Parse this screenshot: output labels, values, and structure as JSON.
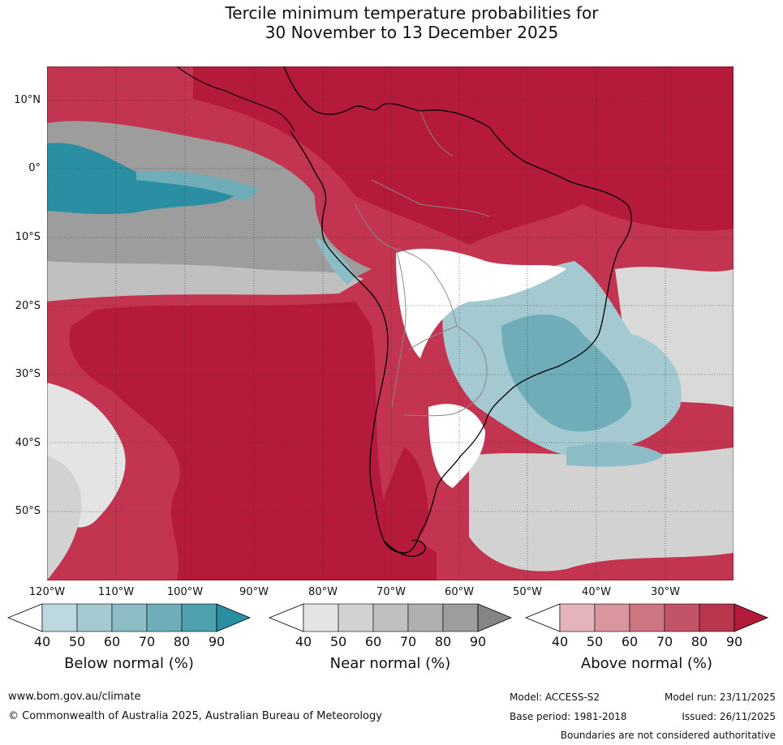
{
  "title": {
    "line1": "Tercile minimum temperature probabilities for",
    "line2": "30 November to 13 December 2025"
  },
  "map": {
    "lat_labels": [
      "10°N",
      "0°",
      "10°S",
      "20°S",
      "30°S",
      "40°S",
      "50°S"
    ],
    "lon_labels": [
      "120°W",
      "110°W",
      "100°W",
      "90°W",
      "80°W",
      "70°W",
      "60°W",
      "50°W",
      "40°W",
      "30°W"
    ],
    "colors": {
      "below_full": "#2a8fa2",
      "near_full": "#858585",
      "above_full": "#b51a3a"
    }
  },
  "legend": {
    "ticks": [
      "40",
      "50",
      "60",
      "70",
      "80",
      "90"
    ],
    "below": {
      "title": "Below normal (%)",
      "colors": [
        "#bdd8de",
        "#a5c9d1",
        "#8cbcc5",
        "#6fadb9",
        "#4da0ad",
        "#2a8fa2"
      ]
    },
    "near": {
      "title": "Near normal (%)",
      "colors": [
        "#e4e4e4",
        "#d2d2d2",
        "#c0c0c0",
        "#afafaf",
        "#9d9d9d",
        "#858585"
      ]
    },
    "above": {
      "title": "Above normal (%)",
      "colors": [
        "#e4b4ba",
        "#da969f",
        "#cd7581",
        "#c35467",
        "#b8374e",
        "#b51a3a"
      ]
    }
  },
  "footer": {
    "url": "www.bom.gov.au/climate",
    "copyright": "© Commonwealth of Australia 2025, Australian Bureau of Meteorology",
    "model": "Model: ACCESS-S2",
    "base_period": "Base period: 1981-2018",
    "model_run": "Model run: 23/11/2025",
    "issued": "Issued: 26/11/2025",
    "disclaimer": "Boundaries are not considered authoritative"
  }
}
